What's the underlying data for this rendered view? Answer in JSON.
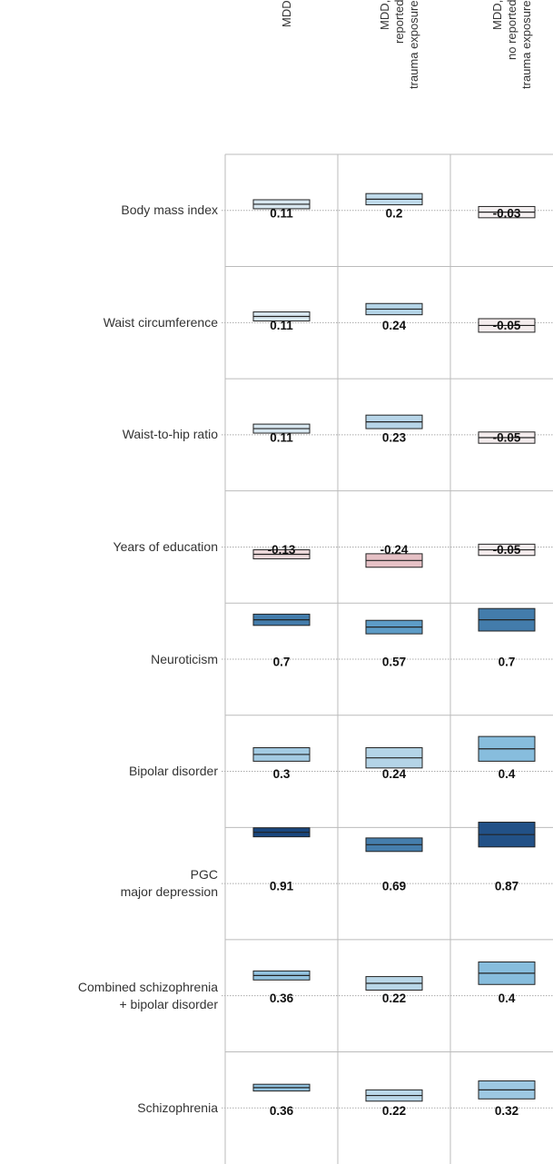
{
  "chart_data": {
    "type": "interval_matrix",
    "categories": [
      "Body mass index",
      "Waist circumference",
      "Waist-to-hip ratio",
      "Years of education",
      "Neuroticism",
      "Bipolar disorder",
      "PGC\nmajor depression",
      "Combined schizophrenia\n+ bipolar disorder",
      "Schizophrenia"
    ],
    "series": [
      {
        "name": "MDD",
        "values": [
          0.11,
          0.11,
          0.11,
          -0.13,
          0.7,
          0.3,
          0.91,
          0.36,
          0.36
        ],
        "errors": [
          0.08,
          0.08,
          0.08,
          0.08,
          0.1,
          0.12,
          0.08,
          0.08,
          0.06
        ]
      },
      {
        "name": "MDD,\nreported\ntrauma exposure",
        "values": [
          0.2,
          0.24,
          0.23,
          -0.24,
          0.57,
          0.24,
          0.69,
          0.22,
          0.22
        ],
        "errors": [
          0.1,
          0.1,
          0.12,
          0.12,
          0.12,
          0.18,
          0.12,
          0.12,
          0.1
        ]
      },
      {
        "name": "MDD,\nno reported\ntrauma exposure",
        "values": [
          -0.03,
          -0.05,
          -0.05,
          -0.05,
          0.7,
          0.4,
          0.87,
          0.4,
          0.32
        ],
        "errors": [
          0.1,
          0.12,
          0.1,
          0.1,
          0.2,
          0.22,
          0.22,
          0.2,
          0.16
        ]
      }
    ],
    "colorscale": [
      [
        -1,
        "#b2182b"
      ],
      [
        0,
        "#f7f7f7"
      ],
      [
        0.5,
        "#6baed6"
      ],
      [
        1,
        "#08306b"
      ]
    ],
    "line_color": "#222222"
  }
}
